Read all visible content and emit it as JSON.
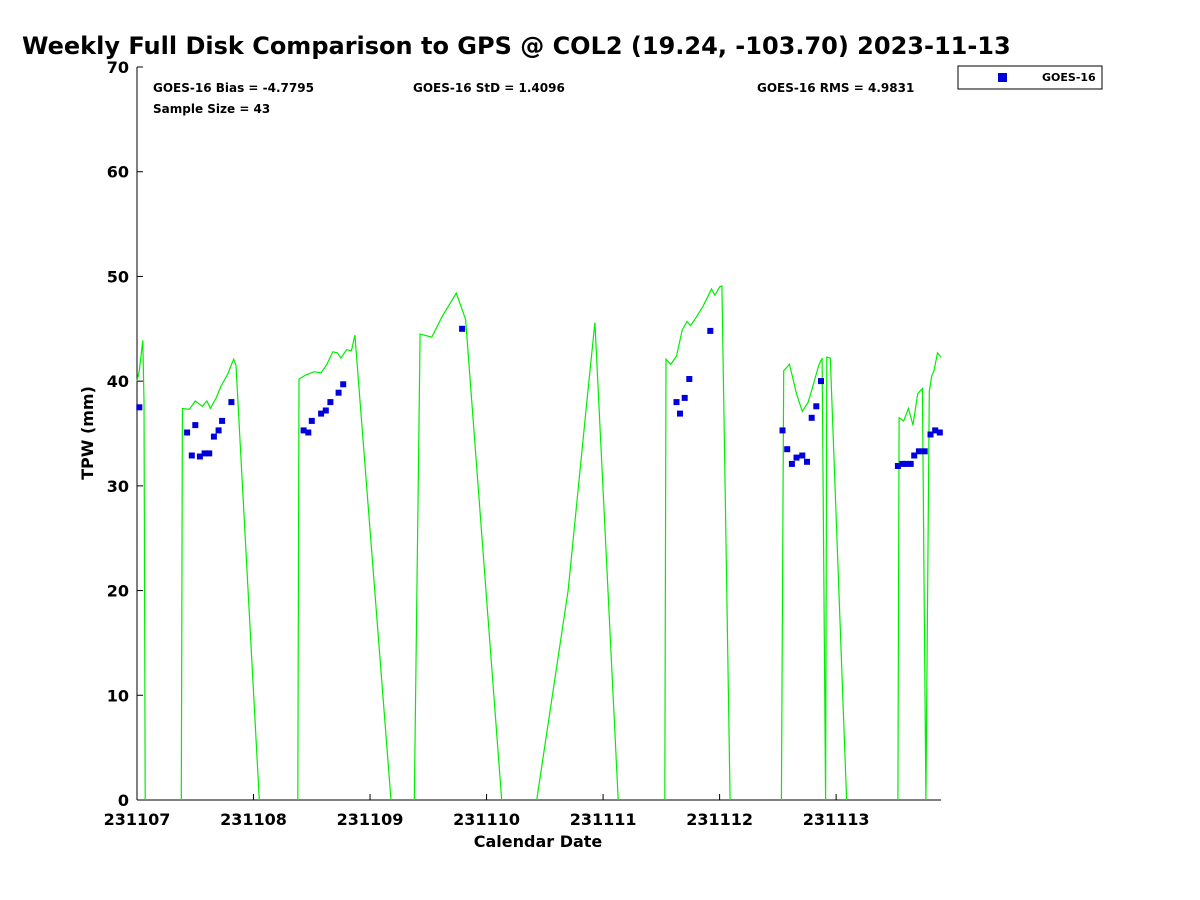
{
  "chart_data": {
    "type": "scatter",
    "title": "Weekly Full Disk Comparison to GPS @ COL2 (19.24, -103.70) 2023-11-13",
    "xlabel": "Calendar Date",
    "ylabel": "TPW (mm)",
    "xlim": [
      231107,
      231113.9
    ],
    "ylim": [
      0,
      70
    ],
    "x_ticks": [
      {
        "value": 231107,
        "label": "231107"
      },
      {
        "value": 231108,
        "label": "231108"
      },
      {
        "value": 231109,
        "label": "231109"
      },
      {
        "value": 231110,
        "label": "231110"
      },
      {
        "value": 231111,
        "label": "231111"
      },
      {
        "value": 231112,
        "label": "231112"
      },
      {
        "value": 231113,
        "label": "231113"
      }
    ],
    "y_ticks": [
      0,
      10,
      20,
      30,
      40,
      50,
      60,
      70
    ],
    "grid": false,
    "legend_position": "top-right, outside plot",
    "stats": {
      "bias": "GOES-16 Bias = -4.7795",
      "std": "GOES-16 StD = 1.4096",
      "rms": "GOES-16 RMS = 4.9831",
      "sample": "Sample Size = 43"
    },
    "series": [
      {
        "name": "GOES-16",
        "kind": "scatter",
        "marker": "square",
        "color": "#0000dd",
        "x": [
          231107.02,
          231107.43,
          231107.47,
          231107.5,
          231107.54,
          231107.58,
          231107.62,
          231107.66,
          231107.7,
          231107.73,
          231107.81,
          231108.43,
          231108.47,
          231108.5,
          231108.58,
          231108.62,
          231108.66,
          231108.73,
          231108.77,
          231109.79,
          231111.63,
          231111.66,
          231111.7,
          231111.74,
          231111.92,
          231112.54,
          231112.58,
          231112.62,
          231112.66,
          231112.71,
          231112.75,
          231112.79,
          231112.83,
          231112.87,
          231113.53,
          231113.57,
          231113.6,
          231113.64,
          231113.67,
          231113.71,
          231113.76,
          231113.81,
          231113.85,
          231113.89
        ],
        "y": [
          37.5,
          35.1,
          32.9,
          35.8,
          32.8,
          33.1,
          33.1,
          34.7,
          35.3,
          36.2,
          38.0,
          35.3,
          35.1,
          36.2,
          36.9,
          37.2,
          38.0,
          38.9,
          39.7,
          45.0,
          38.0,
          36.9,
          38.4,
          40.2,
          44.8,
          35.3,
          33.5,
          32.1,
          32.7,
          32.9,
          32.3,
          36.5,
          37.6,
          40.0,
          31.9,
          32.1,
          32.1,
          32.1,
          32.9,
          33.3,
          33.3,
          34.9,
          35.3,
          35.1
        ]
      },
      {
        "name": "GPS",
        "kind": "line",
        "color": "#00ee00",
        "segments": [
          {
            "x": [
              231107.0,
              231107.02,
              231107.05,
              231107.06,
              231107.07
            ],
            "y": [
              40.0,
              41.0,
              43.9,
              38.0,
              0
            ]
          },
          {
            "x": [
              231107.38,
              231107.39,
              231107.45,
              231107.5,
              231107.56,
              231107.6,
              231107.63,
              231107.68,
              231107.72,
              231107.78,
              231107.8,
              231107.83,
              231107.85,
              231108.05
            ],
            "y": [
              0,
              37.4,
              37.3,
              38.1,
              37.6,
              38.1,
              37.4,
              38.4,
              39.5,
              40.7,
              41.3,
              42.1,
              41.5,
              0
            ]
          },
          {
            "x": [
              231108.38,
              231108.39,
              231108.45,
              231108.52,
              231108.58,
              231108.63,
              231108.68,
              231108.72,
              231108.75,
              231108.8,
              231108.84,
              231108.87,
              231109.18
            ],
            "y": [
              0,
              40.2,
              40.6,
              40.9,
              40.8,
              41.6,
              42.8,
              42.7,
              42.2,
              43.0,
              42.9,
              44.4,
              0
            ]
          },
          {
            "x": [
              231109.38,
              231109.43,
              231109.53,
              231109.62,
              231109.74,
              231109.82,
              231110.13
            ],
            "y": [
              0,
              44.5,
              44.2,
              46.2,
              48.4,
              45.9,
              0
            ]
          },
          {
            "x": [
              231110.43,
              231110.7,
              231110.86,
              231110.93,
              231111.13
            ],
            "y": [
              0,
              20.0,
              38.0,
              45.6,
              0
            ]
          },
          {
            "x": [
              231111.53,
              231111.54,
              231111.58,
              231111.63,
              231111.68,
              231111.72,
              231111.75,
              231111.8,
              231111.86,
              231111.9,
              231111.93,
              231111.96,
              231112.0,
              231112.02,
              231112.09
            ],
            "y": [
              0,
              42.1,
              41.6,
              42.4,
              44.9,
              45.7,
              45.3,
              46.1,
              47.2,
              48.1,
              48.8,
              48.2,
              49.0,
              49.1,
              0
            ]
          },
          {
            "x": [
              231112.53,
              231112.55,
              231112.6,
              231112.66,
              231112.71,
              231112.76,
              231112.8,
              231112.85,
              231112.88,
              231112.91,
              231112.92,
              231112.95,
              231113.09
            ],
            "y": [
              0,
              41.0,
              41.6,
              38.8,
              37.1,
              38.0,
              39.5,
              41.5,
              42.2,
              0,
              42.3,
              42.2,
              0
            ]
          },
          {
            "x": [
              231113.53,
              231113.54,
              231113.58,
              231113.62,
              231113.66,
              231113.7,
              231113.74,
              231113.77,
              231113.8,
              231113.82,
              231113.84,
              231113.87,
              231113.9
            ],
            "y": [
              0,
              36.5,
              36.2,
              37.4,
              35.8,
              38.8,
              39.3,
              0,
              39.0,
              40.5,
              41.0,
              42.7,
              42.3
            ]
          }
        ]
      }
    ],
    "legend": [
      {
        "label": "GOES-16",
        "marker": "square",
        "color": "#0000dd"
      }
    ]
  }
}
